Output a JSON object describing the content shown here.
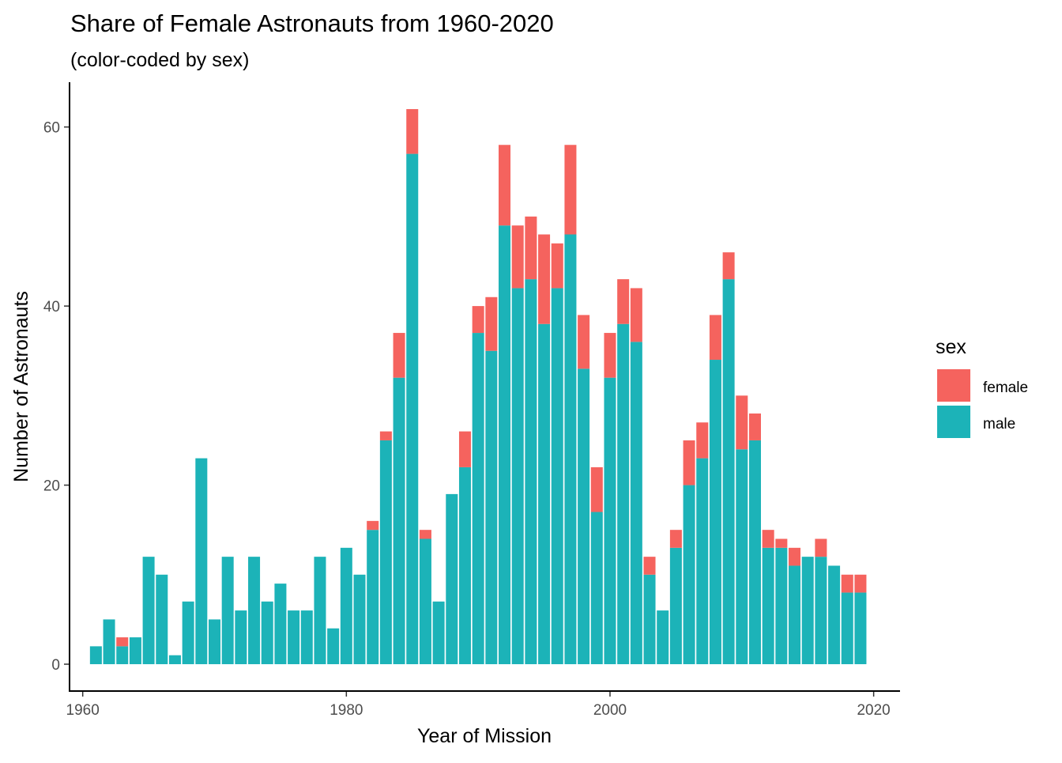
{
  "chart_data": {
    "type": "bar",
    "stacked": true,
    "title": "Share of Female Astronauts from 1960-2020",
    "subtitle": "(color-coded by sex)",
    "xlabel": "Year of Mission",
    "ylabel": "Number of Astronauts",
    "xlim": [
      1959,
      2022
    ],
    "ylim": [
      -3,
      65
    ],
    "xticks": [
      1960,
      1980,
      2000,
      2020
    ],
    "yticks": [
      0,
      20,
      40,
      60
    ],
    "grid": false,
    "legend": {
      "title": "sex",
      "position": "right",
      "entries": [
        {
          "label": "female",
          "color": "#F8766D"
        },
        {
          "label": "male",
          "color": "#00BFC4"
        }
      ]
    },
    "x": [
      1961,
      1962,
      1963,
      1964,
      1965,
      1966,
      1967,
      1968,
      1969,
      1970,
      1971,
      1972,
      1973,
      1974,
      1975,
      1976,
      1977,
      1978,
      1979,
      1980,
      1981,
      1982,
      1983,
      1984,
      1985,
      1986,
      1987,
      1988,
      1989,
      1990,
      1991,
      1992,
      1993,
      1994,
      1995,
      1996,
      1997,
      1998,
      1999,
      2000,
      2001,
      2002,
      2003,
      2004,
      2005,
      2006,
      2007,
      2008,
      2009,
      2010,
      2011,
      2012,
      2013,
      2014,
      2015,
      2016,
      2017,
      2018,
      2019
    ],
    "series": [
      {
        "name": "male",
        "color": "#1CB3B8",
        "values": [
          2,
          5,
          2,
          3,
          12,
          10,
          1,
          7,
          23,
          5,
          12,
          6,
          12,
          7,
          9,
          6,
          6,
          12,
          4,
          13,
          10,
          15,
          25,
          32,
          57,
          14,
          7,
          19,
          22,
          37,
          35,
          49,
          42,
          43,
          38,
          42,
          48,
          33,
          17,
          32,
          38,
          36,
          10,
          6,
          13,
          20,
          23,
          34,
          43,
          24,
          25,
          13,
          13,
          11,
          12,
          12,
          11,
          8,
          8
        ]
      },
      {
        "name": "female",
        "color": "#F5635E",
        "values": [
          0,
          0,
          1,
          0,
          0,
          0,
          0,
          0,
          0,
          0,
          0,
          0,
          0,
          0,
          0,
          0,
          0,
          0,
          0,
          0,
          0,
          1,
          1,
          5,
          5,
          1,
          0,
          0,
          4,
          3,
          6,
          9,
          7,
          7,
          10,
          5,
          10,
          6,
          5,
          5,
          5,
          6,
          2,
          0,
          2,
          5,
          4,
          5,
          3,
          6,
          3,
          2,
          1,
          2,
          0,
          2,
          0,
          2,
          2
        ]
      }
    ]
  }
}
